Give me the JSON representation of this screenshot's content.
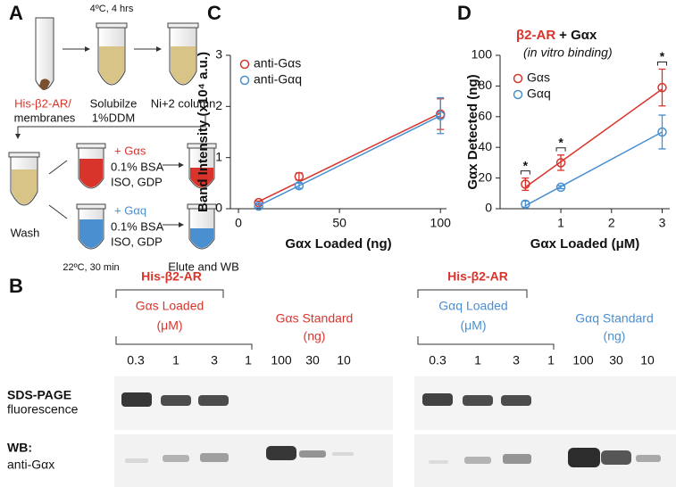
{
  "panel_labels": [
    "A",
    "B",
    "C",
    "D"
  ],
  "panel_a": {
    "temp_top": "4ºC, 4 hrs",
    "start_label": [
      "His-β2-AR/",
      "membranes"
    ],
    "solubilize": [
      "Solubilze",
      "1%DDM"
    ],
    "column": "Ni+2 column",
    "wash": "Wash",
    "gs_add": "+ Gαs",
    "gq_add": "+ Gαq",
    "conditions": [
      "0.1% BSA",
      "ISO, GDP"
    ],
    "temp_bottom": "22ºC, 30 min",
    "elute": "Elute and WB"
  },
  "panel_b": {
    "groups": [
      {
        "header": "His-β2-AR",
        "loaded": [
          "Gαs Loaded",
          "(μM)"
        ],
        "standard": [
          "Gαs Standard",
          "(ng)"
        ],
        "lanes": [
          "0.3",
          "1",
          "3",
          "1",
          "100",
          "30",
          "10"
        ]
      },
      {
        "header": "His-β2-AR",
        "loaded": [
          "Gαq Loaded",
          "(μM)"
        ],
        "standard": [
          "Gαq Standard",
          "(ng)"
        ],
        "lanes": [
          "0.3",
          "1",
          "3",
          "1",
          "100",
          "30",
          "10"
        ]
      }
    ],
    "rows": [
      [
        "SDS-PAGE",
        "fluorescence"
      ],
      [
        "WB:",
        "anti-Gαx"
      ]
    ]
  },
  "chart_data": [
    {
      "type": "scatter",
      "xlabel": "Gαx Loaded (ng)",
      "ylabel": "Band Intensity (x10⁴ a.u.)",
      "x": [
        10,
        30,
        100
      ],
      "xlim": [
        -4,
        103
      ],
      "xticks": [
        0,
        50,
        100
      ],
      "ylim": [
        0,
        3
      ],
      "yticks": [
        0,
        1,
        2,
        3
      ],
      "series": [
        {
          "name": "anti-Gαs",
          "color": "#d9342b",
          "values": [
            0.12,
            0.63,
            1.85
          ],
          "errors": [
            0.03,
            0.07,
            0.3
          ],
          "fit": {
            "x": [
              10,
              100
            ],
            "y": [
              0.14,
              1.87
            ]
          }
        },
        {
          "name": "anti-Gαq",
          "color": "#4a8fd0",
          "values": [
            0.05,
            0.45,
            1.82
          ],
          "errors": [
            0.03,
            0.05,
            0.35
          ],
          "fit": {
            "x": [
              10,
              100
            ],
            "y": [
              0.06,
              1.82
            ]
          }
        }
      ]
    },
    {
      "type": "scatter",
      "title": "β2-AR",
      "title_suffix": "+ Gαx",
      "subtitle": "(in vitro binding)",
      "xlabel": "Gαx Loaded (μM)",
      "ylabel": "Gαx Detected (ng)",
      "x": [
        0.3,
        1,
        3
      ],
      "xlim": [
        -0.2,
        3.15
      ],
      "xticks": [
        1,
        2,
        3
      ],
      "ylim": [
        0,
        100
      ],
      "yticks": [
        0,
        20,
        40,
        60,
        80,
        100
      ],
      "annotations": [
        "*",
        "*",
        "*"
      ],
      "series": [
        {
          "name": "Gαs",
          "color": "#d9342b",
          "values": [
            16,
            30,
            79
          ],
          "errors": [
            4,
            5,
            12
          ],
          "fit": {
            "x": [
              0.3,
              3
            ],
            "y": [
              14,
              78
            ]
          }
        },
        {
          "name": "Gαq",
          "color": "#4a8fd0",
          "values": [
            3,
            14,
            50
          ],
          "errors": [
            2,
            1,
            11
          ],
          "fit": {
            "x": [
              0.3,
              3
            ],
            "y": [
              2,
              50
            ]
          }
        }
      ]
    }
  ]
}
